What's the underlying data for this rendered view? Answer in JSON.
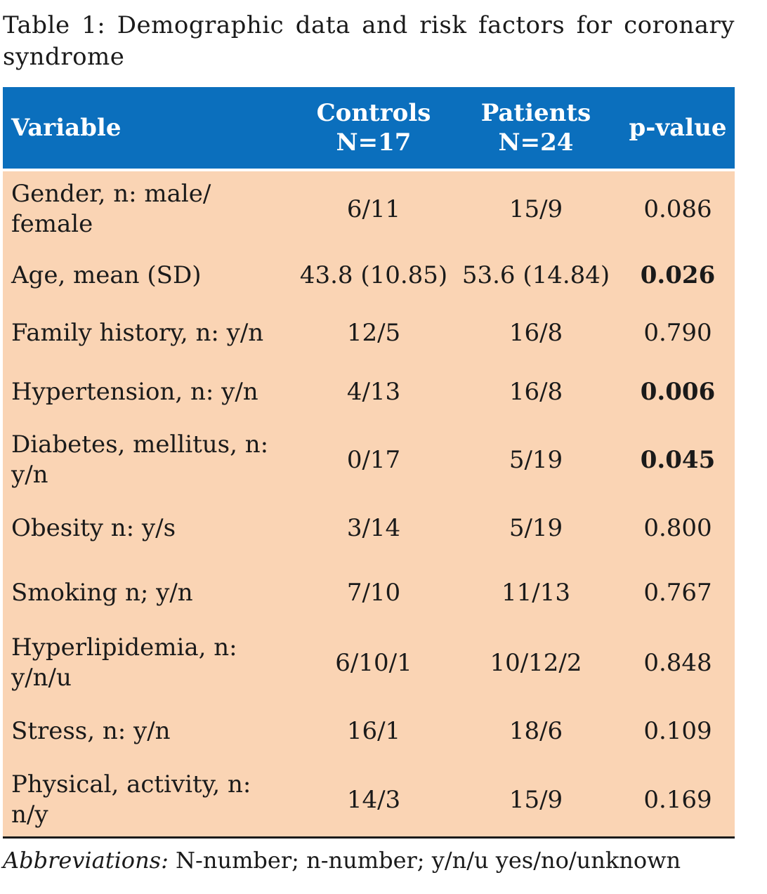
{
  "caption": "Table 1: Demographic data and risk factors for coronary syndrome",
  "header": {
    "variable": "Variable",
    "controls": "Controls",
    "controls_n": "N=17",
    "patients": "Patients",
    "patients_n": "N=24",
    "pvalue": "p-value"
  },
  "colors": {
    "header_bg": "#0b6fbd",
    "body_bg": "#fad4b4",
    "header_text": "#ffffff"
  },
  "rows": [
    {
      "variable": "Gender, n: male/ female",
      "controls": "6/11",
      "patients": "15/9",
      "pvalue": "0.086",
      "significant": false
    },
    {
      "variable": "Age, mean (SD)",
      "controls": "43.8 (10.85)",
      "patients": "53.6 (14.84)",
      "pvalue": "0.026",
      "significant": true
    },
    {
      "variable": "Family history, n: y/n",
      "controls": "12/5",
      "patients": "16/8",
      "pvalue": "0.790",
      "significant": false
    },
    {
      "variable": "Hypertension, n: y/n",
      "controls": "4/13",
      "patients": "16/8",
      "pvalue": "0.006",
      "significant": true
    },
    {
      "variable": "Diabetes, mellitus, n: y/n",
      "controls": "0/17",
      "patients": "5/19",
      "pvalue": "0.045",
      "significant": true
    },
    {
      "variable": "Obesity n: y/s",
      "controls": "3/14",
      "patients": "5/19",
      "pvalue": "0.800",
      "significant": false
    },
    {
      "variable": "Smoking n; y/n",
      "controls": "7/10",
      "patients": "11/13",
      "pvalue": "0.767",
      "significant": false
    },
    {
      "variable": "Hyperlipidemia, n: y/n/u",
      "controls": "6/10/1",
      "patients": "10/12/2",
      "pvalue": "0.848",
      "significant": false
    },
    {
      "variable": "Stress, n: y/n",
      "controls": "16/1",
      "patients": "18/6",
      "pvalue": "0.109",
      "significant": false
    },
    {
      "variable": "Physical, activity, n: n/y",
      "controls": "14/3",
      "patients": "15/9",
      "pvalue": "0.169",
      "significant": false
    }
  ],
  "footnote": {
    "label": "Abbreviations:",
    "text": " N-number; n-number; y/n/u yes/no/unknown"
  }
}
